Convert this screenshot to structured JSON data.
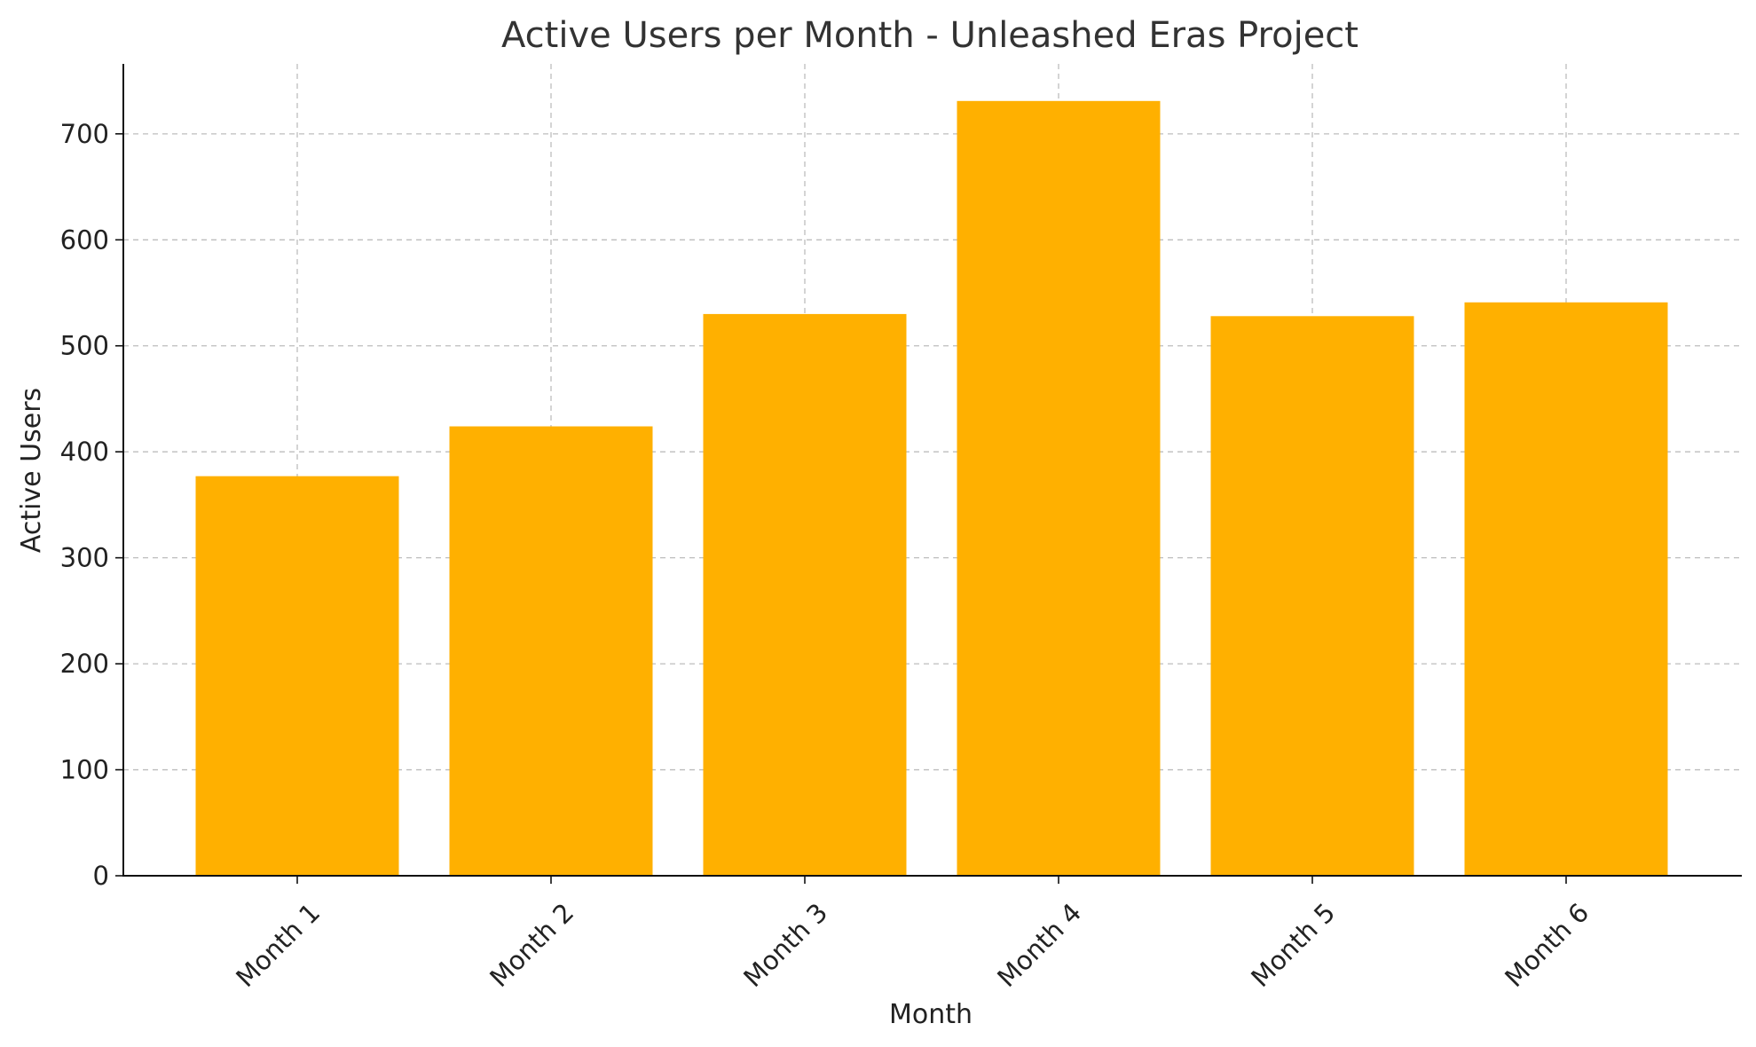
{
  "chart_data": {
    "type": "bar",
    "title": "Active Users per Month - Unleashed Eras Project",
    "xlabel": "Month",
    "ylabel": "Active Users",
    "categories": [
      "Month 1",
      "Month 2",
      "Month 3",
      "Month 4",
      "Month 5",
      "Month 6"
    ],
    "values": [
      377,
      424,
      530,
      731,
      528,
      541
    ],
    "ylim": [
      0,
      766
    ],
    "yticks": [
      0,
      100,
      200,
      300,
      400,
      500,
      600,
      700
    ],
    "grid": true,
    "bar_color": "#FFB000"
  }
}
